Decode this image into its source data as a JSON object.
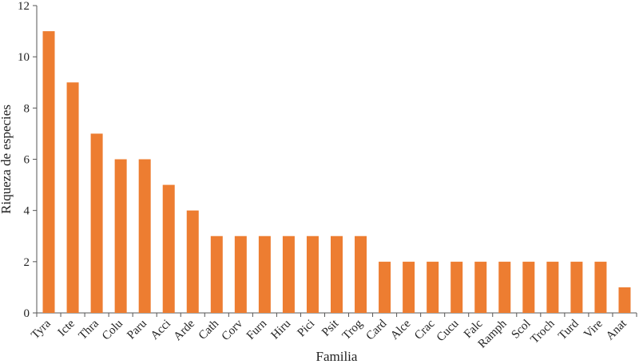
{
  "chart_data": {
    "type": "bar",
    "title": "",
    "xlabel": "Familia",
    "ylabel": "Riqueza de especies",
    "ylim": [
      0,
      12
    ],
    "yticks": [
      0,
      2,
      4,
      6,
      8,
      10,
      12
    ],
    "grid": false,
    "legend": "none",
    "bar_color": "#ED7D31",
    "categories": [
      "Tyra",
      "Icte",
      "Thra",
      "Colu",
      "Paru",
      "Acci",
      "Arde",
      "Cath",
      "Corv",
      "Furn",
      "Hiru",
      "Pici",
      "Psit",
      "Trog",
      "Card",
      "Alce",
      "Crac",
      "Cucu",
      "Falc",
      "Ramph",
      "Scol",
      "Troch",
      "Turd",
      "Vire",
      "Anat"
    ],
    "values": [
      11,
      9,
      7,
      6,
      6,
      5,
      4,
      3,
      3,
      3,
      3,
      3,
      3,
      3,
      2,
      2,
      2,
      2,
      2,
      2,
      2,
      2,
      2,
      2,
      1
    ]
  }
}
